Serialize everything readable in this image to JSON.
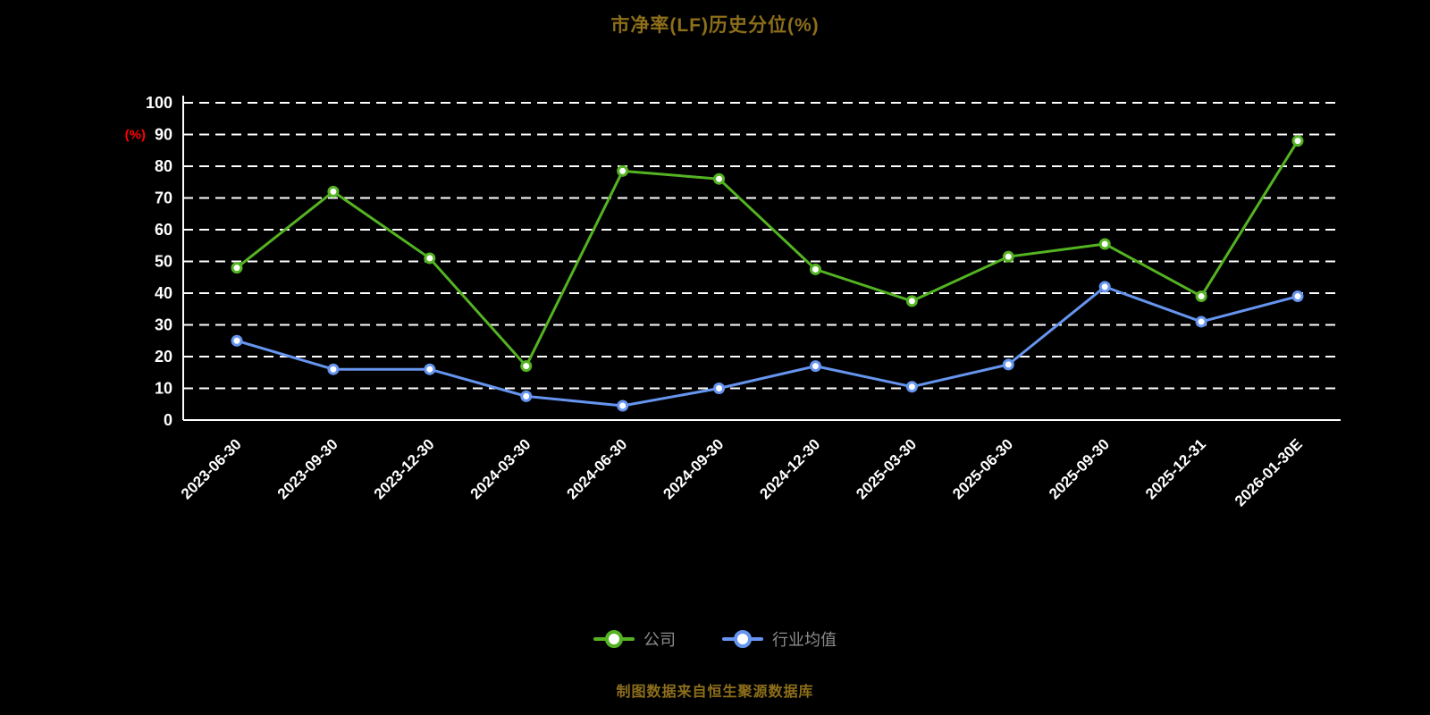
{
  "title": "市净率(LF)历史分位(%)",
  "caption": "制图数据来自恒生聚源数据库",
  "chart_data": {
    "type": "line",
    "title": "市净率(LF)历史分位(%)",
    "xlabel": "",
    "ylabel": "(%)",
    "ylim": [
      0,
      100
    ],
    "ytick_step": 10,
    "grid": true,
    "grid_style": "dashed",
    "legend_position": "bottom",
    "categories": [
      "2023-06-30",
      "2023-09-30",
      "2023-12-30",
      "2024-03-30",
      "2024-06-30",
      "2024-09-30",
      "2024-12-30",
      "2025-03-30",
      "2025-06-30",
      "2025-09-30",
      "2025-12-31",
      "2026-01-30E"
    ],
    "series": [
      {
        "name": "公司",
        "color": "#54b322",
        "marker": "circle",
        "values": [
          48,
          72,
          51,
          17,
          78.5,
          76,
          47.5,
          37.5,
          51.5,
          55.5,
          39,
          88
        ]
      },
      {
        "name": "行业均值",
        "color": "#6695ef",
        "marker": "circle",
        "values": [
          25,
          16,
          16,
          7.5,
          4.5,
          10,
          17,
          10.5,
          17.5,
          42,
          31,
          39
        ]
      }
    ]
  },
  "colors": {
    "background": "#000000",
    "title": "#8d6f1a",
    "caption": "#8d6f1a",
    "legend_text": "#8c8c8c",
    "axis": "#ffffff",
    "grid": "#ffffff",
    "tick_label": "#ffffff",
    "ylabel": "#ff0000"
  }
}
